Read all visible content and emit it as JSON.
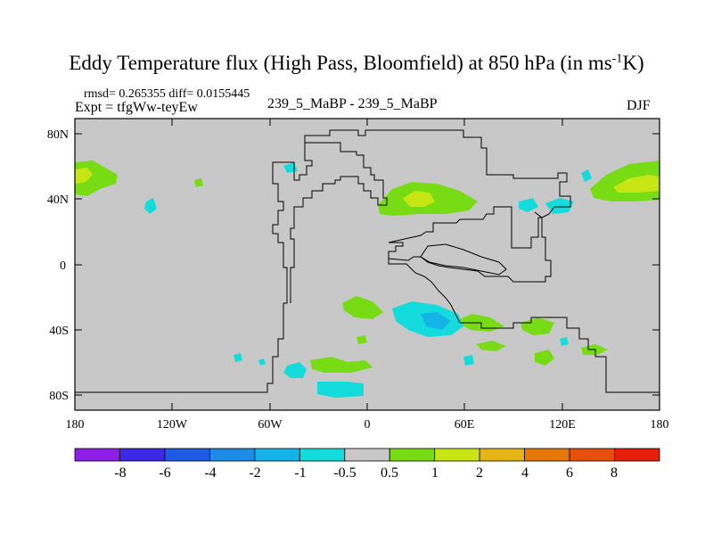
{
  "title": {
    "main": "Eddy Temperature flux (High Pass, Bloomfield) at 850 hPa (in ms",
    "superscript": "-1",
    "tail": "K)"
  },
  "stats_line": "rmsd= 0.265355 diff= 0.0155445",
  "expt_line": "Expt = tfgWw-teyEw",
  "runs_line": "239_5_MaBP - 239_5_MaBP",
  "season": "DJF",
  "map": {
    "background_color": "#c8c8c8",
    "lat_ticks": [
      "80N",
      "40N",
      "0",
      "40S",
      "80S"
    ],
    "lon_ticks": [
      "180",
      "120W",
      "60W",
      "0",
      "60E",
      "120E",
      "180"
    ]
  },
  "colorbar": {
    "labels": [
      "-8",
      "-6",
      "-4",
      "-2",
      "-1",
      "-0.5",
      "0.5",
      "1",
      "2",
      "4",
      "6",
      "8"
    ],
    "colors": [
      "#8c1ee6",
      "#3c28e6",
      "#1e5ae6",
      "#1e8ce6",
      "#14b4e6",
      "#14dcdc",
      "#c8c8c8",
      "#78dc14",
      "#c8e614",
      "#e6b414",
      "#e6780a",
      "#e6500a",
      "#e61e0a"
    ]
  }
}
